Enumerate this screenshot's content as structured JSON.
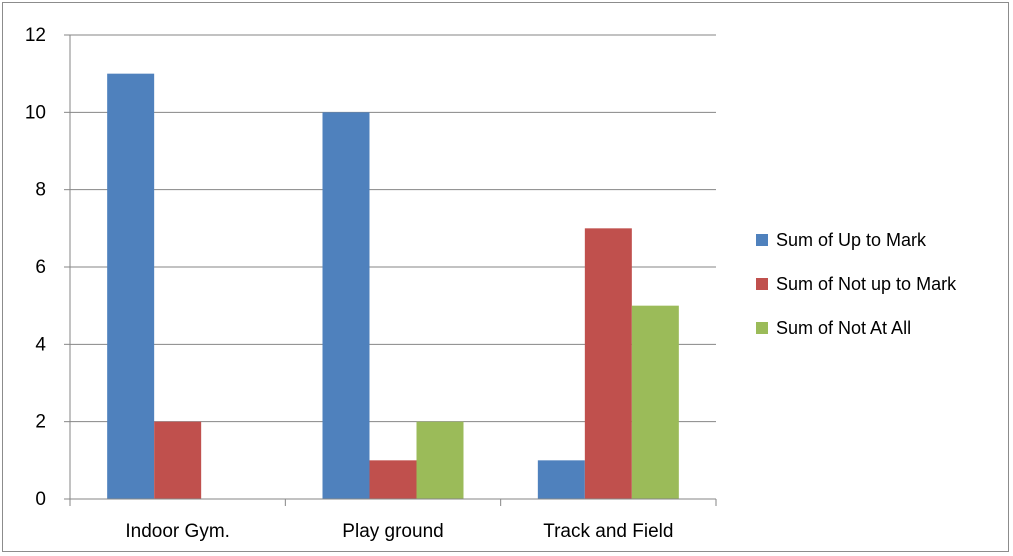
{
  "chart_data": {
    "type": "bar",
    "categories": [
      "Indoor Gym.",
      "Play ground",
      "Track and Field"
    ],
    "series": [
      {
        "name": "Sum of Up to Mark",
        "values": [
          11,
          10,
          1
        ],
        "color": "#4f81bd"
      },
      {
        "name": "Sum of Not up to Mark",
        "values": [
          2,
          1,
          7
        ],
        "color": "#c0504d"
      },
      {
        "name": "Sum of Not At All",
        "values": [
          0,
          2,
          5
        ],
        "color": "#9bbb59"
      }
    ],
    "ylim": [
      0,
      12
    ],
    "y_ticks": [
      0,
      2,
      4,
      6,
      8,
      10,
      12
    ],
    "grid": true,
    "legend_position": "right"
  }
}
